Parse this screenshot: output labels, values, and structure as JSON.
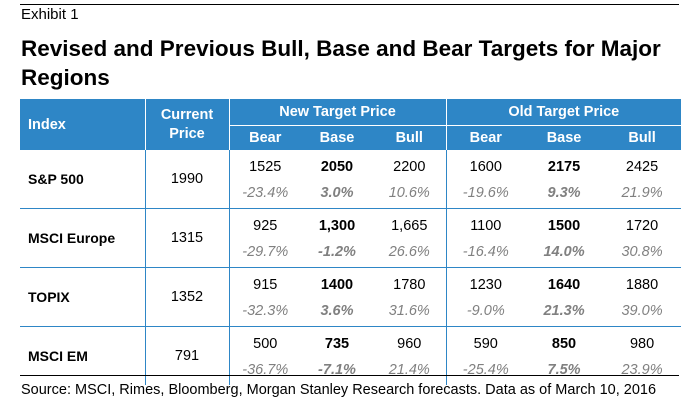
{
  "exhibit": "Exhibit 1",
  "title": "Revised and Previous Bull, Base and Bear Targets for Major Regions",
  "table": {
    "header_index": "Index",
    "header_current_line1": "Current",
    "header_current_line2": "Price",
    "group_new": "New Target Price",
    "group_old": "Old Target Price",
    "sub": [
      "Bear",
      "Base",
      "Bull",
      "Bear",
      "Base",
      "Bull"
    ],
    "rows": [
      {
        "name": "S&P 500",
        "current": "1990",
        "targets": [
          "1525",
          "2050",
          "2200",
          "1600",
          "2175",
          "2425"
        ],
        "pcts": [
          "-23.4%",
          "3.0%",
          "10.6%",
          "-19.6%",
          "9.3%",
          "21.9%"
        ]
      },
      {
        "name": "MSCI Europe",
        "current": "1315",
        "targets": [
          "925",
          "1,300",
          "1,665",
          "1100",
          "1500",
          "1720"
        ],
        "pcts": [
          "-29.7%",
          "-1.2%",
          "26.6%",
          "-16.4%",
          "14.0%",
          "30.8%"
        ]
      },
      {
        "name": "TOPIX",
        "current": "1352",
        "targets": [
          "915",
          "1400",
          "1780",
          "1230",
          "1640",
          "1880"
        ],
        "pcts": [
          "-32.3%",
          "3.6%",
          "31.6%",
          "-9.0%",
          "21.3%",
          "39.0%"
        ]
      },
      {
        "name": "MSCI EM",
        "current": "791",
        "targets": [
          "500",
          "735",
          "960",
          "590",
          "850",
          "980"
        ],
        "pcts": [
          "-36.7%",
          "-7.1%",
          "21.4%",
          "-25.4%",
          "7.5%",
          "23.9%"
        ]
      }
    ]
  },
  "source": "Source: MSCI, Rimes, Bloomberg, Morgan Stanley Research forecasts. Data as of March 10, 2016",
  "colors": {
    "header_bg": "#2e86c6",
    "pct_text": "#808080"
  }
}
